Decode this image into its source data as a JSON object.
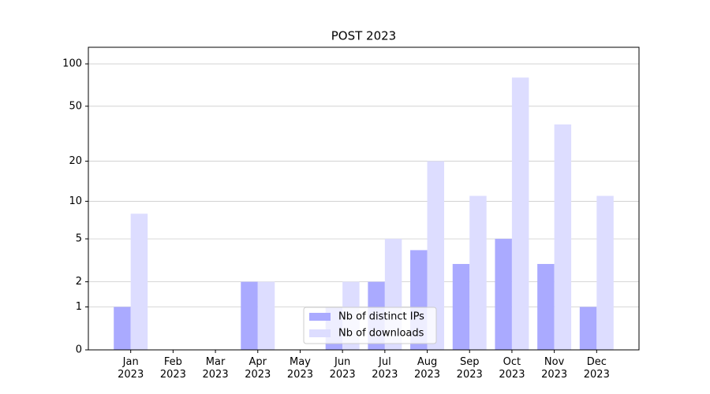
{
  "chart_data": {
    "type": "bar",
    "title": "POST 2023",
    "categories": [
      "Jan\n2023",
      "Feb\n2023",
      "Mar\n2023",
      "Apr\n2023",
      "May\n2023",
      "Jun\n2023",
      "Jul\n2023",
      "Aug\n2023",
      "Sep\n2023",
      "Oct\n2023",
      "Nov\n2023",
      "Dec\n2023"
    ],
    "series": [
      {
        "name": "Nb of distinct IPs",
        "color": "#aaaaff",
        "values": [
          1,
          0,
          0,
          2,
          0,
          1,
          2,
          4,
          3,
          5,
          3,
          1
        ]
      },
      {
        "name": "Nb of downloads",
        "color": "#ddddff",
        "values": [
          8,
          0,
          0,
          2,
          0,
          2,
          5,
          20,
          11,
          80,
          37,
          11
        ]
      }
    ],
    "yscale": "log1p",
    "ylim": [
      0,
      131
    ],
    "yticks": [
      0,
      1,
      2,
      5,
      10,
      20,
      50,
      100
    ],
    "grid": true,
    "legend": "lower center"
  }
}
